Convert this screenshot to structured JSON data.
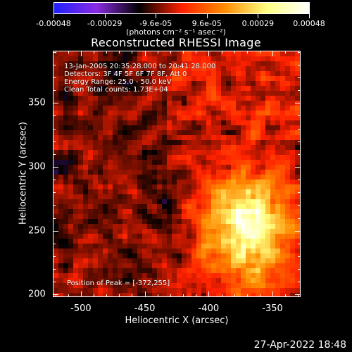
{
  "colorbar": {
    "tick_labels": [
      "-0.00048",
      "-0.00029",
      "-9.6e-05",
      "9.6e-05",
      "0.00029",
      "0.00048"
    ],
    "units_label": "(photons cm⁻² s⁻¹ asec⁻²)",
    "colors": [
      "#2020ff",
      "#8a2be2",
      "#000000",
      "#ff2000",
      "#ff8c00",
      "#ffff80",
      "#ffffff"
    ]
  },
  "plot": {
    "title": "Reconstructed RHESSI Image",
    "info_lines": [
      "13-Jan-2005 20:35:28.000 to 20:41:28.000",
      "Detectors: 3F 4F 5F 6F 7F 8F, Att 0",
      "Energy Range: 25.0 - 50.0 keV",
      "Clean      Total counts: 1.73E+04"
    ],
    "peak_text": "Position of Peak = [-372,255]",
    "xlabel": "Heliocentric X (arcsec)",
    "ylabel": "Heliocentric Y (arcsec)",
    "xticks": [
      "-500",
      "-450",
      "-400",
      "-350"
    ],
    "yticks": [
      "350",
      "300",
      "250",
      "200"
    ]
  },
  "footer": {
    "date": "27-Apr-2022 18:48"
  },
  "chart_data": {
    "type": "heatmap",
    "title": "Reconstructed RHESSI Image",
    "xlabel": "Heliocentric X (arcsec)",
    "ylabel": "Heliocentric Y (arcsec)",
    "xlim": [
      -522,
      -328
    ],
    "ylim": [
      198,
      391
    ],
    "zlim": [
      -0.00048,
      0.00048
    ],
    "peak_position": [
      -372,
      255
    ]
  }
}
